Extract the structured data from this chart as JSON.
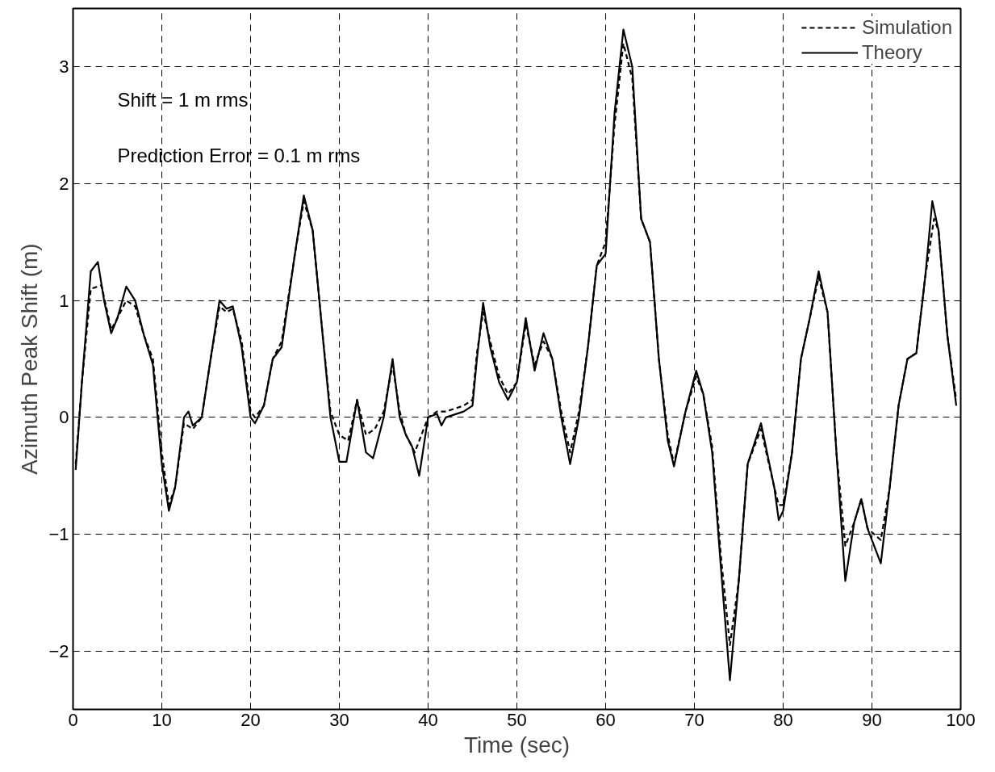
{
  "chart_data": {
    "type": "line",
    "xlabel": "Time (sec)",
    "ylabel": "Azimuth Peak Shift (m)",
    "xlim": [
      0,
      100
    ],
    "ylim": [
      -2.5,
      3.5
    ],
    "xticks": [
      0,
      10,
      20,
      30,
      40,
      50,
      60,
      70,
      80,
      90,
      100
    ],
    "yticks": [
      -2,
      -1,
      0,
      1,
      2,
      3
    ],
    "grid": true,
    "legend": "top right",
    "annotations": [
      "Shift = 1 m rms",
      "Prediction Error = 0.1 m rms"
    ],
    "series": [
      {
        "name": "Simulation",
        "color": "#000000",
        "line_style": "dashed",
        "x": [
          0.3,
          1,
          2,
          3.2,
          4.3,
          5,
          6,
          7,
          8,
          9,
          10,
          10.8,
          11.5,
          12.5,
          13.5,
          14.5,
          15.5,
          16.5,
          17.3,
          18,
          19,
          20,
          20.5,
          21.5,
          22.5,
          23.5,
          25,
          26,
          27,
          28,
          29,
          30,
          31,
          32,
          33,
          34,
          35,
          36,
          36.8,
          37.5,
          38.5,
          40,
          41,
          42,
          44,
          45,
          45.5,
          46.2,
          47,
          48,
          49,
          50,
          51,
          52,
          53,
          54,
          55,
          56,
          57,
          58,
          59,
          60,
          61,
          62,
          63,
          64,
          65,
          66,
          67,
          67.7,
          69,
          70.2,
          71,
          72,
          73,
          74,
          75,
          76,
          77.5,
          79,
          79.5,
          80,
          81,
          82,
          83,
          84,
          85,
          86,
          87,
          88,
          88.8,
          89.5,
          91,
          92,
          93,
          94,
          95,
          96,
          97,
          97.5,
          98.5,
          99.5
        ],
        "values": [
          -0.4,
          0.3,
          1.1,
          1.13,
          0.75,
          0.85,
          1.0,
          0.95,
          0.7,
          0.5,
          -0.3,
          -0.75,
          -0.6,
          -0.05,
          -0.1,
          0.0,
          0.5,
          0.95,
          0.9,
          0.93,
          0.65,
          0.05,
          0.0,
          0.1,
          0.5,
          0.65,
          1.4,
          1.85,
          1.6,
          0.8,
          0.05,
          -0.15,
          -0.2,
          0.15,
          -0.15,
          -0.1,
          0.05,
          0.45,
          0.05,
          -0.15,
          -0.3,
          0.0,
          0.05,
          0.05,
          0.1,
          0.15,
          0.55,
          0.9,
          0.65,
          0.35,
          0.2,
          0.3,
          0.8,
          0.45,
          0.65,
          0.5,
          0.05,
          -0.3,
          0.05,
          0.6,
          1.3,
          1.5,
          2.5,
          3.2,
          2.9,
          1.7,
          1.5,
          0.5,
          -0.15,
          -0.4,
          0.05,
          0.35,
          0.2,
          -0.25,
          -1.2,
          -1.95,
          -1.4,
          -0.4,
          -0.1,
          -0.6,
          -0.75,
          -0.75,
          -0.3,
          0.5,
          0.85,
          1.2,
          0.9,
          -0.3,
          -1.1,
          -0.9,
          -0.7,
          -0.95,
          -1.05,
          -0.6,
          0.1,
          0.5,
          0.55,
          1.2,
          1.7,
          1.6,
          0.7,
          0.15
        ]
      },
      {
        "name": "Theory",
        "color": "#000000",
        "line_style": "solid",
        "x": [
          0.3,
          1,
          2,
          2.8,
          3.5,
          4.3,
          5,
          6,
          7,
          8,
          9,
          10,
          10.8,
          11.5,
          12.5,
          13,
          13.5,
          14.5,
          15.5,
          16.5,
          17.3,
          18,
          19,
          20,
          20.5,
          21.5,
          22.5,
          23.5,
          25,
          26,
          27,
          28,
          29,
          30,
          30.8,
          32,
          33,
          33.8,
          35,
          36,
          36.8,
          37.5,
          38.2,
          39,
          40,
          41,
          41.5,
          42,
          44,
          45,
          45.5,
          46.2,
          47,
          48,
          49,
          50,
          51,
          52,
          53,
          54,
          55,
          56,
          57,
          58,
          59,
          60,
          61,
          62,
          63,
          64,
          65,
          66,
          67,
          67.7,
          69,
          70.2,
          71,
          72,
          73,
          74,
          75,
          76,
          77.5,
          79,
          79.5,
          80,
          81,
          82,
          83,
          84,
          85,
          86,
          87,
          88,
          88.8,
          89.5,
          91,
          92,
          93,
          94,
          95,
          96,
          96.8,
          97.5,
          98.5,
          99.5
        ],
        "values": [
          -0.45,
          0.3,
          1.25,
          1.33,
          1.0,
          0.72,
          0.85,
          1.12,
          1.0,
          0.7,
          0.45,
          -0.4,
          -0.8,
          -0.6,
          0.0,
          0.05,
          -0.07,
          0.0,
          0.5,
          1.0,
          0.93,
          0.95,
          0.6,
          0.0,
          -0.05,
          0.1,
          0.5,
          0.6,
          1.4,
          1.9,
          1.6,
          0.8,
          0.0,
          -0.38,
          -0.38,
          0.15,
          -0.3,
          -0.35,
          0.0,
          0.5,
          0.0,
          -0.15,
          -0.25,
          -0.5,
          0.0,
          0.03,
          -0.07,
          0.0,
          0.05,
          0.1,
          0.5,
          0.98,
          0.6,
          0.3,
          0.15,
          0.3,
          0.85,
          0.4,
          0.72,
          0.5,
          0.0,
          -0.4,
          0.0,
          0.6,
          1.3,
          1.4,
          2.6,
          3.32,
          3.0,
          1.7,
          1.5,
          0.5,
          -0.2,
          -0.42,
          0.05,
          0.4,
          0.2,
          -0.3,
          -1.3,
          -2.25,
          -1.4,
          -0.4,
          -0.05,
          -0.6,
          -0.88,
          -0.8,
          -0.3,
          0.5,
          0.85,
          1.25,
          0.9,
          -0.3,
          -1.4,
          -0.9,
          -0.7,
          -0.95,
          -1.25,
          -0.6,
          0.1,
          0.5,
          0.55,
          1.2,
          1.85,
          1.6,
          0.7,
          0.1
        ]
      }
    ]
  }
}
